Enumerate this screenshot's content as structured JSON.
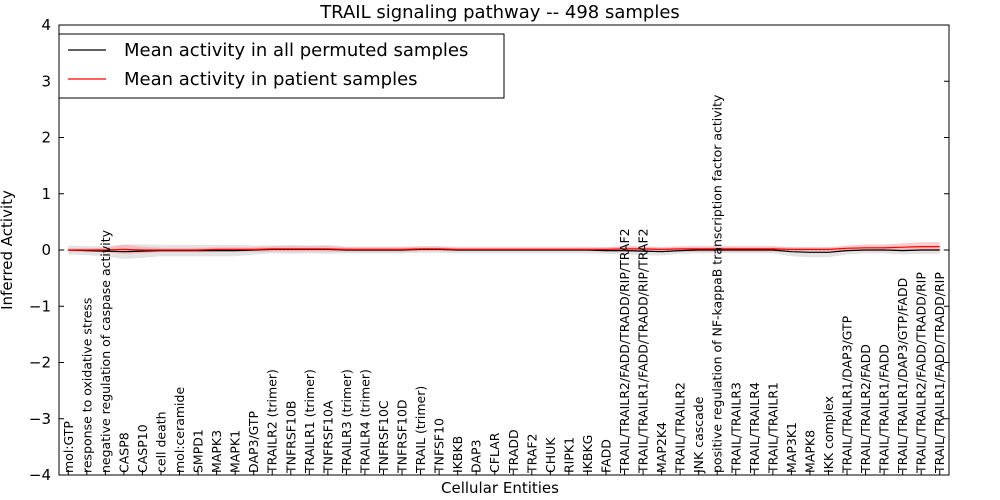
{
  "chart_data": {
    "type": "line",
    "title": "TRAIL signaling pathway -- 498 samples",
    "xlabel": "Cellular Entities",
    "ylabel": "Inferred Activity",
    "ylim": [
      -4,
      4
    ],
    "yticks": [
      "−4",
      "−3",
      "−2",
      "−1",
      "0",
      "1",
      "2",
      "3",
      "4"
    ],
    "grid": false,
    "legend_position": "top-left",
    "categories": [
      "mol:GTP",
      "response to oxidative stress",
      "negative regulation of caspase activity",
      "CASP8",
      "CASP10",
      "cell death",
      "mol:ceramide",
      "SMPD1",
      "MAPK3",
      "MAPK1",
      "DAP3/GTP",
      "TRAILR2 (trimer)",
      "TNFRSF10B",
      "TRAILR1 (trimer)",
      "TNFRSF10A",
      "TRAILR3 (trimer)",
      "TRAILR4 (trimer)",
      "TNFRSF10C",
      "TNFRSF10D",
      "TRAIL (trimer)",
      "TNFSF10",
      "IKBKB",
      "DAP3",
      "CFLAR",
      "TRADD",
      "TRAF2",
      "CHUK",
      "RIPK1",
      "IKBKG",
      "FADD",
      "TRAIL/TRAILR2/FADD/TRADD/RIP/TRAF2",
      "TRAIL/TRAILR1/FADD/TRADD/RIP/TRAF2",
      "MAP2K4",
      "TRAIL/TRAILR2",
      "JNK cascade",
      "positive regulation of NF-kappaB transcription factor activity",
      "TRAIL/TRAILR3",
      "TRAIL/TRAILR4",
      "TRAIL/TRAILR1",
      "MAP3K1",
      "MAPK8",
      "IKK complex",
      "TRAIL/TRAILR1/DAP3/GTP",
      "TRAIL/TRAILR2/FADD",
      "TRAIL/TRAILR1/FADD",
      "TRAIL/TRAILR1/DAP3/GTP/FADD",
      "TRAIL/TRAILR2/FADD/TRADD/RIP",
      "TRAIL/TRAILR1/FADD/TRADD/RIP"
    ],
    "series": [
      {
        "name": "Mean activity in all permuted samples",
        "color": "#000000",
        "values": [
          0,
          -0.01,
          -0.02,
          -0.03,
          -0.02,
          -0.01,
          -0.01,
          -0.01,
          -0.01,
          -0.01,
          0,
          0.01,
          0.01,
          0.01,
          0.01,
          0,
          0,
          0,
          0,
          0.01,
          0.01,
          0,
          0,
          0,
          0,
          0,
          0,
          0,
          0,
          -0.01,
          -0.01,
          -0.02,
          -0.03,
          -0.01,
          0,
          0,
          0,
          0,
          0,
          -0.03,
          -0.04,
          -0.04,
          -0.01,
          0,
          0,
          -0.01,
          0,
          0
        ],
        "band": [
          0.08,
          0.08,
          0.09,
          0.13,
          0.12,
          0.1,
          0.1,
          0.1,
          0.1,
          0.1,
          0.08,
          0.07,
          0.08,
          0.07,
          0.08,
          0.06,
          0.06,
          0.06,
          0.06,
          0.06,
          0.06,
          0.06,
          0.06,
          0.06,
          0.06,
          0.06,
          0.06,
          0.06,
          0.06,
          0.06,
          0.07,
          0.07,
          0.07,
          0.06,
          0.06,
          0.06,
          0.06,
          0.06,
          0.06,
          0.08,
          0.09,
          0.09,
          0.07,
          0.06,
          0.06,
          0.07,
          0.07,
          0.07
        ]
      },
      {
        "name": "Mean activity in patient samples",
        "color": "#ff0000",
        "values": [
          0,
          0,
          0,
          0.01,
          0,
          0,
          0,
          0,
          0.01,
          0.01,
          0.01,
          0.02,
          0.02,
          0.02,
          0.02,
          0.01,
          0.01,
          0.01,
          0.01,
          0.02,
          0.02,
          0.01,
          0.01,
          0.01,
          0.01,
          0.01,
          0.01,
          0.01,
          0.01,
          0.01,
          0.02,
          0.02,
          0.01,
          0.02,
          0.02,
          0.02,
          0.02,
          0.02,
          0.02,
          0.01,
          0.01,
          0.01,
          0.03,
          0.04,
          0.04,
          0.05,
          0.06,
          0.06
        ],
        "band": [
          0.03,
          0.03,
          0.04,
          0.08,
          0.06,
          0.04,
          0.04,
          0.04,
          0.04,
          0.04,
          0.04,
          0.05,
          0.05,
          0.05,
          0.05,
          0.04,
          0.04,
          0.04,
          0.04,
          0.04,
          0.04,
          0.03,
          0.03,
          0.03,
          0.03,
          0.03,
          0.03,
          0.03,
          0.03,
          0.04,
          0.05,
          0.05,
          0.04,
          0.05,
          0.05,
          0.05,
          0.05,
          0.05,
          0.05,
          0.04,
          0.04,
          0.04,
          0.05,
          0.06,
          0.06,
          0.07,
          0.08,
          0.08
        ]
      }
    ]
  }
}
